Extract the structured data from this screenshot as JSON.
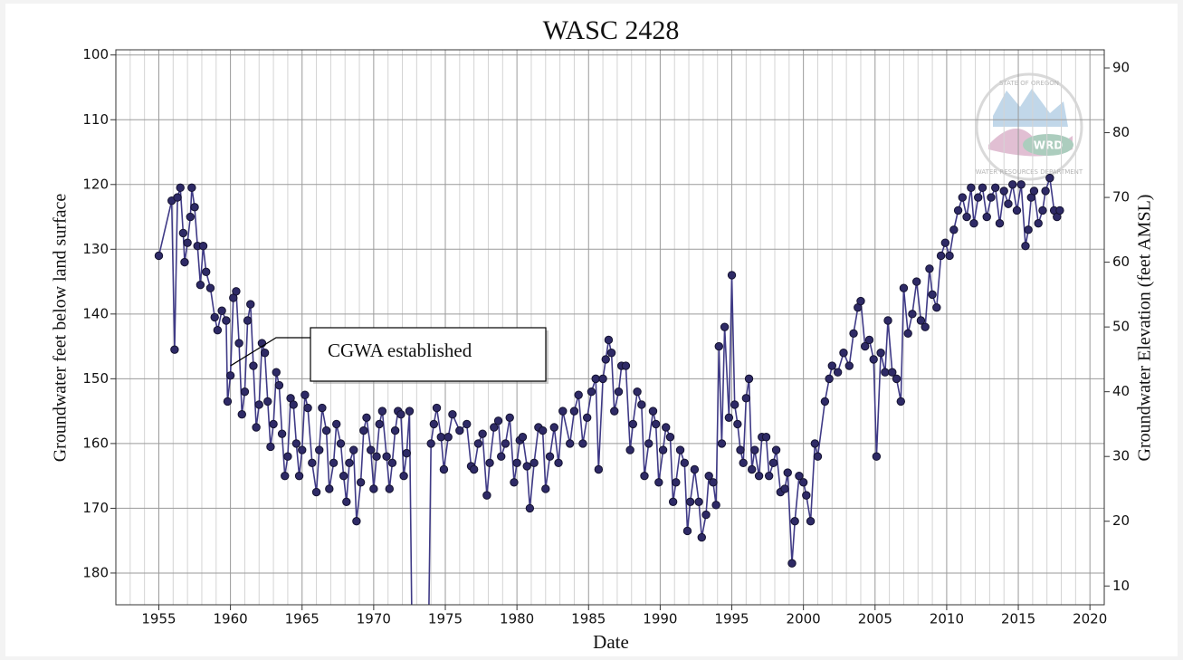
{
  "chart_data": {
    "type": "line",
    "title": "WASC 2428",
    "x_label": "Date",
    "y_label": "Groundwater feet below land surface",
    "y2_label": "Groundwater Elevation (feet AMSL)",
    "color": "#3f3a86",
    "marker_color": "#2e2a66",
    "grid": true,
    "y_inverted": true,
    "xlim": [
      1952,
      2021
    ],
    "xticks": [
      1955,
      1960,
      1965,
      1970,
      1975,
      1980,
      1985,
      1990,
      1995,
      2000,
      2005,
      2010,
      2015,
      2020
    ],
    "xminorticks": [
      1952,
      1953,
      1954,
      1956,
      1957,
      1958,
      1959,
      1961,
      1962,
      1963,
      1964,
      1966,
      1967,
      1968,
      1969,
      1971,
      1972,
      1973,
      1974,
      1976,
      1977,
      1978,
      1979,
      1981,
      1982,
      1983,
      1984,
      1986,
      1987,
      1988,
      1989,
      1991,
      1992,
      1993,
      1994,
      1996,
      1997,
      1998,
      1999,
      2001,
      2002,
      2003,
      2004,
      2006,
      2007,
      2008,
      2009,
      2011,
      2012,
      2013,
      2014,
      2016,
      2017,
      2018,
      2019
    ],
    "ylim": [
      99.2,
      184.9
    ],
    "yticks": [
      100,
      110,
      120,
      130,
      140,
      150,
      160,
      170,
      180
    ],
    "y2lim": [
      92.8,
      7.1
    ],
    "y2ticks": [
      10,
      20,
      30,
      40,
      50,
      60,
      70,
      80,
      90
    ],
    "annotation": {
      "text": "CGWA established",
      "x": 1960,
      "y": 148
    },
    "logo": {
      "top": "STATE OF OREGON",
      "center": "WRD",
      "bottom": "WATER RESOURCES DEPARTMENT"
    },
    "x": [
      1955.0,
      1955.9,
      1956.1,
      1956.3,
      1956.5,
      1956.7,
      1956.8,
      1957.0,
      1957.2,
      1957.3,
      1957.5,
      1957.7,
      1957.9,
      1958.1,
      1958.3,
      1958.6,
      1958.9,
      1959.1,
      1959.4,
      1959.7,
      1959.8,
      1960.0,
      1960.2,
      1960.4,
      1960.6,
      1960.8,
      1961.0,
      1961.2,
      1961.4,
      1961.6,
      1961.8,
      1962.0,
      1962.2,
      1962.4,
      1962.6,
      1962.8,
      1963.0,
      1963.2,
      1963.4,
      1963.6,
      1963.8,
      1964.0,
      1964.2,
      1964.4,
      1964.6,
      1964.8,
      1965.0,
      1965.2,
      1965.4,
      1965.7,
      1966.0,
      1966.2,
      1966.4,
      1966.7,
      1966.9,
      1967.2,
      1967.4,
      1967.7,
      1967.9,
      1968.1,
      1968.3,
      1968.6,
      1968.8,
      1969.1,
      1969.3,
      1969.5,
      1969.8,
      1970.0,
      1970.2,
      1970.4,
      1970.6,
      1970.9,
      1971.1,
      1971.3,
      1971.5,
      1971.7,
      1971.9,
      1972.1,
      1972.3,
      1972.5,
      1972.7,
      1973.8,
      1974.0,
      1974.2,
      1974.4,
      1974.7,
      1974.9,
      1975.2,
      1975.5,
      1976.0,
      1976.5,
      1976.8,
      1977.0,
      1977.3,
      1977.6,
      1977.9,
      1978.1,
      1978.4,
      1978.7,
      1978.9,
      1979.2,
      1979.5,
      1979.8,
      1980.0,
      1980.2,
      1980.4,
      1980.7,
      1980.9,
      1981.2,
      1981.5,
      1981.8,
      1982.0,
      1982.3,
      1982.6,
      1982.9,
      1983.2,
      1983.7,
      1984.0,
      1984.3,
      1984.6,
      1984.9,
      1985.2,
      1985.5,
      1985.7,
      1986.0,
      1986.2,
      1986.4,
      1986.6,
      1986.8,
      1987.1,
      1987.3,
      1987.6,
      1987.9,
      1988.1,
      1988.4,
      1988.7,
      1988.9,
      1989.2,
      1989.5,
      1989.7,
      1989.9,
      1990.2,
      1990.4,
      1990.7,
      1990.9,
      1991.1,
      1991.4,
      1991.7,
      1991.9,
      1992.1,
      1992.4,
      1992.7,
      1992.9,
      1993.2,
      1993.4,
      1993.7,
      1993.9,
      1994.1,
      1994.3,
      1994.5,
      1994.8,
      1995.0,
      1995.2,
      1995.4,
      1995.6,
      1995.8,
      1996.0,
      1996.2,
      1996.4,
      1996.6,
      1996.9,
      1997.1,
      1997.4,
      1997.6,
      1997.9,
      1998.1,
      1998.4,
      1998.7,
      1998.9,
      1999.2,
      1999.4,
      1999.7,
      2000.0,
      2000.2,
      2000.5,
      2000.8,
      2001.0,
      2001.5,
      2001.8,
      2002.0,
      2002.4,
      2002.8,
      2003.2,
      2003.5,
      2003.8,
      2004.0,
      2004.3,
      2004.6,
      2004.9,
      2005.1,
      2005.4,
      2005.7,
      2005.9,
      2006.2,
      2006.5,
      2006.8,
      2007.0,
      2007.3,
      2007.6,
      2007.9,
      2008.2,
      2008.5,
      2008.8,
      2009.0,
      2009.3,
      2009.6,
      2009.9,
      2010.2,
      2010.5,
      2010.8,
      2011.1,
      2011.4,
      2011.7,
      2011.9,
      2012.2,
      2012.5,
      2012.8,
      2013.1,
      2013.4,
      2013.7,
      2014.0,
      2014.3,
      2014.6,
      2014.9,
      2015.2,
      2015.5,
      2015.7,
      2015.9,
      2016.1,
      2016.4,
      2016.7,
      2016.9,
      2017.2,
      2017.5,
      2017.7,
      2017.9
    ],
    "values": [
      131,
      122.5,
      145.5,
      122,
      120.5,
      127.5,
      132,
      129,
      125,
      120.5,
      123.5,
      129.5,
      135.5,
      129.5,
      133.5,
      136,
      140.5,
      142.5,
      139.5,
      141,
      153.5,
      149.5,
      137.5,
      136.5,
      144.5,
      155.5,
      152,
      141,
      138.5,
      148,
      157.5,
      154,
      144.5,
      146,
      153.5,
      160.5,
      157,
      149,
      151,
      158.5,
      165,
      162,
      153,
      154,
      160,
      165,
      161,
      152.5,
      154.5,
      163,
      167.5,
      161,
      154.5,
      158,
      167,
      163,
      157,
      160,
      165,
      169,
      163,
      161,
      172,
      166,
      158,
      156,
      161,
      167,
      162,
      157,
      155,
      162,
      167,
      163,
      158,
      155,
      155.5,
      165,
      161.5,
      155,
      195,
      195,
      160,
      157,
      154.5,
      159,
      164,
      159,
      155.5,
      158,
      157,
      163.5,
      164,
      160,
      158.5,
      168,
      163,
      157.5,
      156.5,
      162,
      160,
      156,
      166,
      163,
      159.5,
      159,
      163.5,
      170,
      163,
      157.5,
      158,
      167,
      162,
      157.5,
      163,
      155,
      160,
      155,
      152.5,
      160,
      156,
      152,
      150,
      164,
      150,
      147,
      144,
      146,
      155,
      152,
      148,
      148,
      161,
      157,
      152,
      154,
      165,
      160,
      155,
      157,
      166,
      161,
      157.5,
      159,
      169,
      166,
      161,
      163,
      173.5,
      169,
      164,
      169,
      174.5,
      171,
      165,
      166,
      169.5,
      145,
      160,
      142,
      156,
      134,
      154,
      157,
      161,
      163,
      153,
      150,
      164,
      161,
      165,
      159,
      159,
      165,
      163,
      161,
      167.5,
      167,
      164.5,
      178.5,
      172,
      165,
      166,
      168,
      172,
      160,
      162,
      153.5,
      150,
      148,
      149,
      146,
      148,
      143,
      139,
      138,
      145,
      144,
      147,
      162,
      146,
      149,
      141,
      149,
      150,
      153.5,
      136,
      143,
      140,
      135,
      141,
      142,
      133,
      137,
      139,
      131,
      129,
      131,
      127,
      124,
      122,
      125,
      120.5,
      126,
      122,
      120.5,
      125,
      122,
      120.5,
      126,
      121,
      123,
      120,
      124,
      120,
      129.5,
      127,
      122,
      121,
      126,
      124,
      121,
      119,
      124,
      125,
      124
    ]
  }
}
